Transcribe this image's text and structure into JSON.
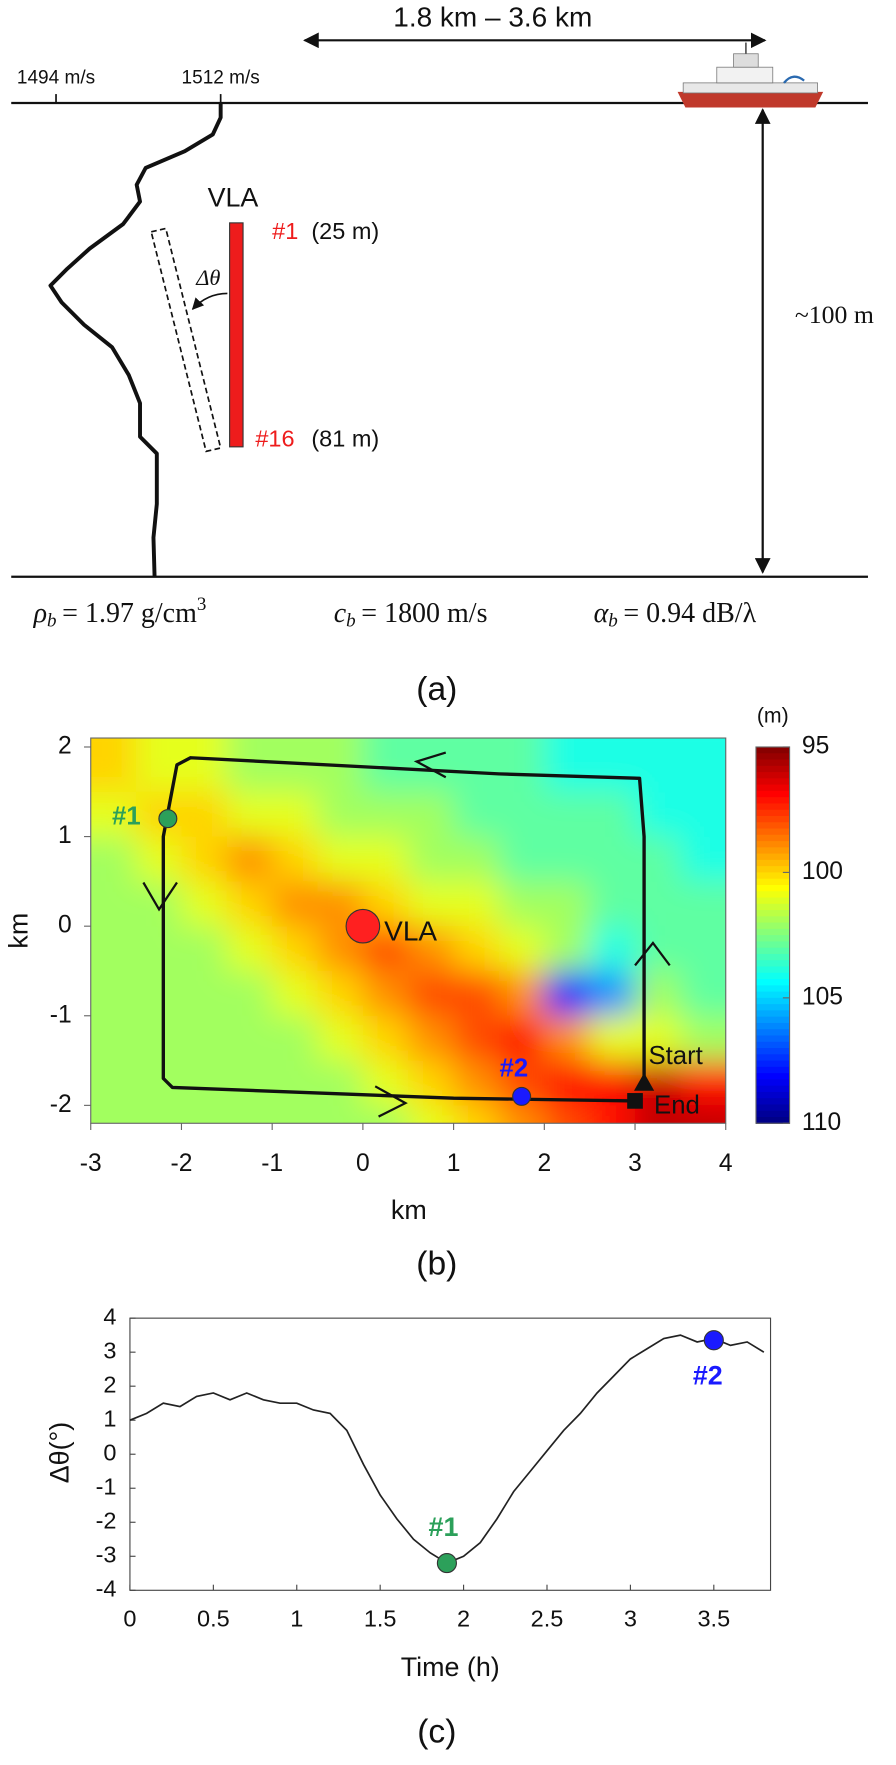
{
  "panel_a": {
    "range_label": "1.8 km – 3.6 km",
    "speed_labels": [
      "1494 m/s",
      "1512 m/s"
    ],
    "array_label": "VLA",
    "top_element": {
      "id": "#1",
      "depth": "(25 m)"
    },
    "bottom_element": {
      "id": "#16",
      "depth": "(81 m)"
    },
    "tilt_label": "Δθ",
    "depth_label": "~100 m",
    "bottom_params": [
      {
        "symbol": "ρ",
        "subscript": "b",
        "value": "= 1.97 g/cm",
        "superscript": "3"
      },
      {
        "symbol": "c",
        "subscript": "b",
        "value": "= 1800 m/s"
      },
      {
        "symbol": "α",
        "subscript": "b",
        "value": "= 0.94 dB/λ"
      }
    ],
    "caption": "(a)"
  },
  "chart_data": [
    {
      "type": "heatmap",
      "caption": "(b)",
      "xlabel": "km",
      "ylabel": "km",
      "xlim": [
        -3,
        4
      ],
      "ylim": [
        -2.2,
        2.1
      ],
      "xticks": [
        -3,
        -2,
        -1,
        0,
        1,
        2,
        3,
        4
      ],
      "yticks": [
        -2,
        -1,
        0,
        1,
        2
      ],
      "x_edges": [
        -3,
        -2.5,
        -2,
        -1.5,
        -1,
        -0.5,
        0,
        0.5,
        1,
        1.5,
        2,
        2.5,
        3,
        3.5,
        4
      ],
      "y_edges": [
        2.1,
        1.5,
        1,
        0.5,
        0,
        -0.5,
        -1,
        -1.5,
        -2,
        -2.2
      ],
      "z": [
        [
          100,
          101,
          101,
          102,
          102,
          102,
          103,
          103,
          103,
          103,
          104,
          104,
          104,
          104
        ],
        [
          101,
          100,
          100,
          101,
          101,
          102,
          102,
          102,
          103,
          103,
          103,
          103,
          104,
          104
        ],
        [
          102,
          101,
          100,
          99,
          100,
          101,
          101,
          102,
          102,
          103,
          103,
          103,
          103,
          104
        ],
        [
          102,
          102,
          101,
          100,
          99,
          99,
          100,
          101,
          101,
          102,
          102,
          103,
          103,
          103
        ],
        [
          102,
          102,
          102,
          101,
          100,
          99,
          98,
          99,
          100,
          101,
          102,
          104,
          103,
          103
        ],
        [
          102,
          102,
          102,
          102,
          101,
          100,
          99,
          98,
          98,
          99,
          108,
          106,
          102,
          103
        ],
        [
          102,
          102,
          102,
          102,
          102,
          101,
          100,
          99,
          98,
          97,
          99,
          101,
          101,
          102
        ],
        [
          102,
          102,
          102,
          102,
          102,
          102,
          101,
          100,
          99,
          98,
          97,
          97,
          96,
          97
        ],
        [
          102,
          102,
          102,
          102,
          102,
          102,
          102,
          101,
          100,
          99,
          98,
          97,
          96,
          96
        ]
      ],
      "colormap": "jet",
      "colormap_reversed": true,
      "colorbar_label": "(m)",
      "zlim": [
        95,
        110
      ],
      "zticks": [
        95,
        100,
        105,
        110
      ],
      "track": {
        "color": "#111111",
        "x": [
          3.1,
          3.1,
          3.05,
          1.5,
          -1.9,
          -2.05,
          -2.2,
          -2.2,
          -2.1,
          1.0,
          3.0
        ],
        "y": [
          -1.75,
          1.0,
          1.65,
          1.7,
          1.88,
          1.8,
          1.0,
          -1.7,
          -1.8,
          -1.92,
          -1.95
        ]
      },
      "markers": [
        {
          "label": "#1",
          "x": -2.15,
          "y": 1.2,
          "color": "#2ca05a"
        },
        {
          "label": "#2",
          "x": 1.75,
          "y": -1.9,
          "color": "#1a1aff"
        },
        {
          "label": "VLA",
          "x": 0,
          "y": 0,
          "color": "#ff2020"
        }
      ],
      "start": {
        "label": "Start",
        "x": 3.1,
        "y": -1.75
      },
      "end": {
        "label": "End",
        "x": 3.0,
        "y": -1.95
      }
    },
    {
      "type": "line",
      "caption": "(c)",
      "xlabel": "Time (h)",
      "ylabel": "Δθ(°)",
      "xlim": [
        0,
        3.84
      ],
      "ylim": [
        -4,
        4
      ],
      "xticks": [
        0,
        0.5,
        1,
        1.5,
        2,
        2.5,
        3,
        3.5
      ],
      "yticks": [
        -4,
        -3,
        -2,
        -1,
        0,
        1,
        2,
        3,
        4
      ],
      "x": [
        0,
        0.1,
        0.2,
        0.3,
        0.4,
        0.5,
        0.6,
        0.7,
        0.8,
        0.9,
        1.0,
        1.1,
        1.2,
        1.3,
        1.4,
        1.5,
        1.6,
        1.7,
        1.8,
        1.9,
        2.0,
        2.1,
        2.2,
        2.3,
        2.4,
        2.5,
        2.6,
        2.7,
        2.8,
        2.9,
        3.0,
        3.1,
        3.2,
        3.3,
        3.4,
        3.5,
        3.6,
        3.7,
        3.8
      ],
      "series": [
        {
          "color": "#222222",
          "values": [
            1.0,
            1.2,
            1.5,
            1.4,
            1.7,
            1.8,
            1.6,
            1.8,
            1.6,
            1.5,
            1.5,
            1.3,
            1.2,
            0.7,
            -0.3,
            -1.2,
            -1.9,
            -2.5,
            -2.9,
            -3.2,
            -3.0,
            -2.6,
            -1.9,
            -1.1,
            -0.5,
            0.1,
            0.7,
            1.2,
            1.8,
            2.3,
            2.8,
            3.1,
            3.4,
            3.5,
            3.3,
            3.4,
            3.2,
            3.3,
            3.0
          ]
        }
      ],
      "markers": [
        {
          "label": "#1",
          "x": 1.9,
          "y": -3.2,
          "color": "#2ca05a"
        },
        {
          "label": "#2",
          "x": 3.5,
          "y": 3.35,
          "color": "#1a1aff"
        }
      ]
    }
  ]
}
